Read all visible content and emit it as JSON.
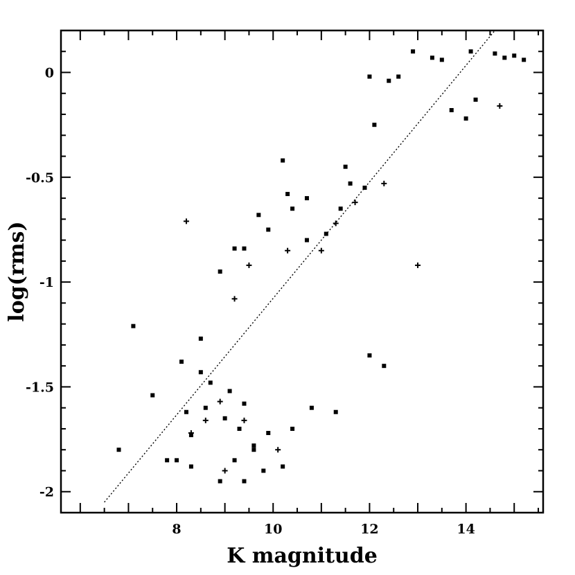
{
  "chart_data": {
    "type": "scatter",
    "title": "",
    "xlabel": "K magnitude",
    "ylabel": "log(rms)",
    "xlim": [
      5.6,
      15.6
    ],
    "ylim": [
      -2.1,
      0.2
    ],
    "xticks": [
      8,
      10,
      12,
      14
    ],
    "xtick_labels": [
      "8",
      "10",
      "12",
      "14"
    ],
    "yticks": [
      0,
      -0.5,
      -1,
      -1.5,
      -2
    ],
    "ytick_labels": [
      "0",
      "-0.5",
      "-1",
      "-1.5",
      "-2"
    ],
    "grid": false,
    "legend": "none",
    "marker_color": "#000000",
    "reference_line": {
      "style": "dotted",
      "x": [
        6.5,
        14.6
      ],
      "y": [
        -2.05,
        0.2
      ]
    },
    "series": [
      {
        "marker": "square",
        "points": [
          [
            6.8,
            -1.8
          ],
          [
            7.1,
            -1.21
          ],
          [
            7.5,
            -1.54
          ],
          [
            7.8,
            -1.85
          ],
          [
            8.0,
            -1.85
          ],
          [
            8.1,
            -1.38
          ],
          [
            8.2,
            -1.62
          ],
          [
            8.3,
            -1.88
          ],
          [
            8.5,
            -1.27
          ],
          [
            8.5,
            -1.43
          ],
          [
            8.6,
            -1.6
          ],
          [
            8.7,
            -1.48
          ],
          [
            8.9,
            -1.95
          ],
          [
            9.0,
            -1.65
          ],
          [
            9.1,
            -1.52
          ],
          [
            9.2,
            -1.85
          ],
          [
            9.3,
            -1.7
          ],
          [
            9.4,
            -1.58
          ],
          [
            9.6,
            -1.78
          ],
          [
            9.8,
            -1.9
          ],
          [
            8.9,
            -0.95
          ],
          [
            9.2,
            -0.84
          ],
          [
            9.4,
            -0.84
          ],
          [
            9.7,
            -0.68
          ],
          [
            9.9,
            -0.75
          ],
          [
            10.2,
            -0.42
          ],
          [
            10.3,
            -0.58
          ],
          [
            10.4,
            -0.65
          ],
          [
            10.7,
            -0.6
          ],
          [
            10.7,
            -0.8
          ],
          [
            11.1,
            -0.77
          ],
          [
            11.4,
            -0.65
          ],
          [
            11.5,
            -0.45
          ],
          [
            11.6,
            -0.53
          ],
          [
            11.9,
            -0.55
          ],
          [
            12.0,
            -0.02
          ],
          [
            12.1,
            -0.25
          ],
          [
            12.4,
            -0.04
          ],
          [
            12.6,
            -0.02
          ],
          [
            12.9,
            0.1
          ],
          [
            13.3,
            0.07
          ],
          [
            13.5,
            0.06
          ],
          [
            14.1,
            0.1
          ],
          [
            14.6,
            0.09
          ],
          [
            14.8,
            0.07
          ],
          [
            15.0,
            0.08
          ],
          [
            15.2,
            0.06
          ],
          [
            12.0,
            -1.35
          ],
          [
            12.3,
            -1.4
          ],
          [
            11.3,
            -1.62
          ],
          [
            10.8,
            -1.6
          ],
          [
            10.4,
            -1.7
          ],
          [
            10.2,
            -1.88
          ],
          [
            9.6,
            -1.8
          ],
          [
            9.9,
            -1.72
          ],
          [
            8.3,
            -1.73
          ],
          [
            9.4,
            -1.95
          ],
          [
            13.7,
            -0.18
          ],
          [
            14.2,
            -0.13
          ],
          [
            14.0,
            -0.22
          ]
        ]
      },
      {
        "marker": "plus",
        "points": [
          [
            8.2,
            -0.71
          ],
          [
            8.3,
            -1.72
          ],
          [
            8.9,
            -1.57
          ],
          [
            9.2,
            -1.08
          ],
          [
            9.5,
            -0.92
          ],
          [
            10.3,
            -0.85
          ],
          [
            11.0,
            -0.85
          ],
          [
            11.3,
            -0.72
          ],
          [
            11.7,
            -0.62
          ],
          [
            12.3,
            -0.53
          ],
          [
            14.7,
            -0.16
          ],
          [
            13.0,
            -0.92
          ],
          [
            9.0,
            -1.9
          ],
          [
            9.4,
            -1.66
          ],
          [
            10.1,
            -1.8
          ],
          [
            8.6,
            -1.66
          ]
        ]
      }
    ]
  }
}
